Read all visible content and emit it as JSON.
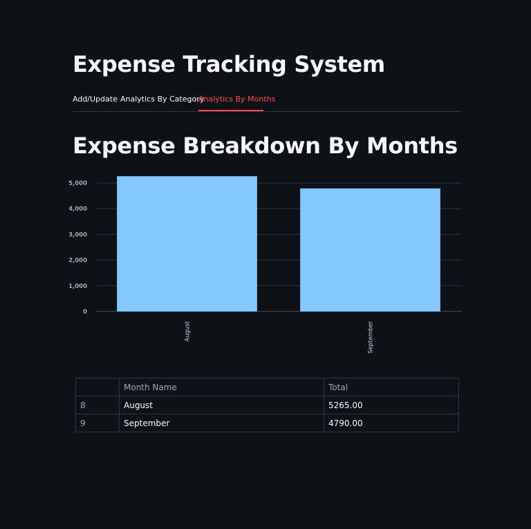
{
  "app": {
    "title": "Expense Tracking System"
  },
  "tabs": [
    {
      "label": "Add/Update",
      "active": false
    },
    {
      "label": "Analytics By Category",
      "active": false
    },
    {
      "label": "Analytics By Months",
      "active": true
    }
  ],
  "section": {
    "title": "Expense Breakdown By Months"
  },
  "colors": {
    "background": "#0e1117",
    "accent": "#ff4b4b",
    "bar": "#83c9ff",
    "grid": "#31333f"
  },
  "chart_data": {
    "type": "bar",
    "categories": [
      "August",
      "September"
    ],
    "values": [
      5265,
      4790
    ],
    "title": "",
    "xlabel": "",
    "ylabel": "",
    "ylim": [
      0,
      5000
    ],
    "yticks": [
      "0",
      "1,000",
      "2,000",
      "3,000",
      "4,000",
      "5,000"
    ],
    "grid": true,
    "bar_color": "#83c9ff"
  },
  "table": {
    "columns": [
      "",
      "Month Name",
      "Total"
    ],
    "rows": [
      [
        "8",
        "August",
        "5265.00"
      ],
      [
        "9",
        "September",
        "4790.00"
      ]
    ]
  }
}
